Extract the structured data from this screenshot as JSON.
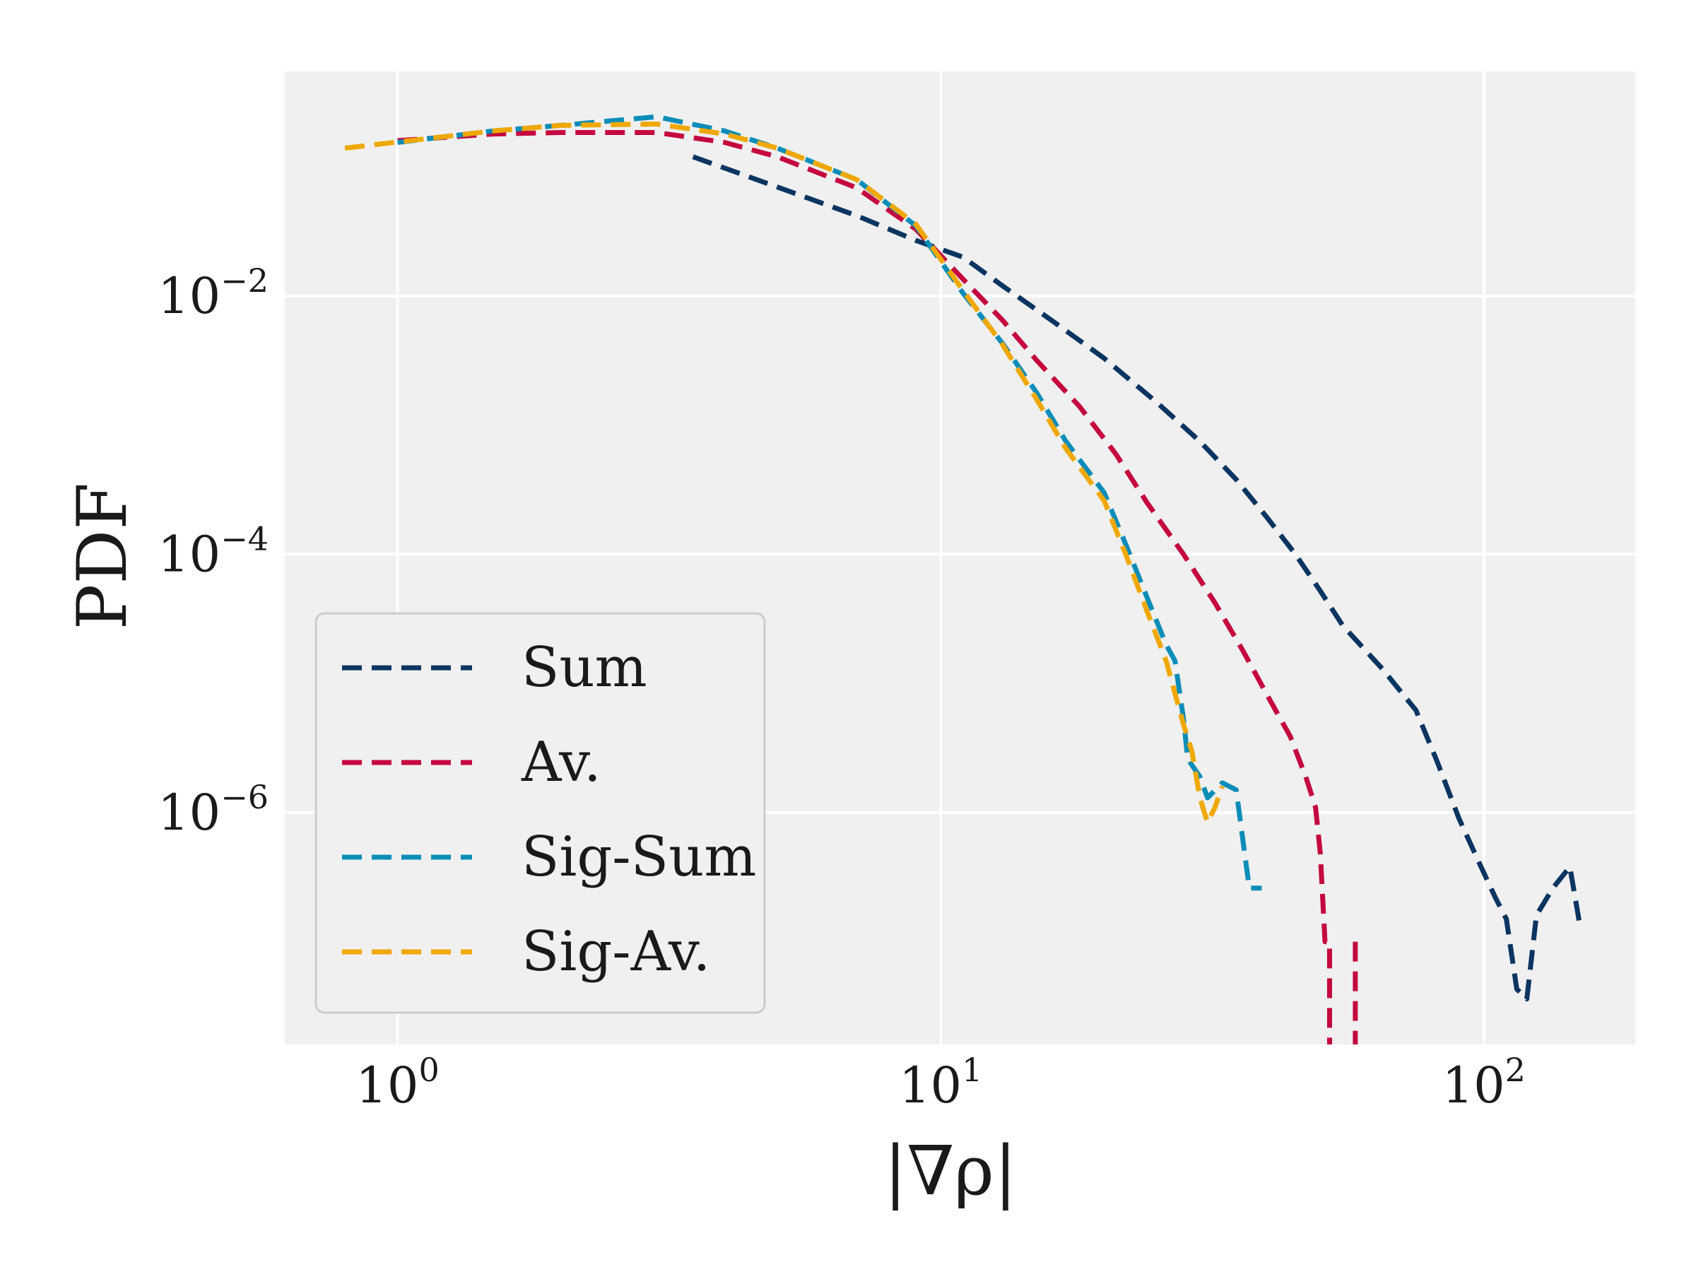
{
  "chart_data": {
    "type": "line",
    "xlabel": "|∇ρ|",
    "ylabel": "PDF",
    "x_scale": "log",
    "y_scale": "log",
    "xlim": [
      0.62,
      190
    ],
    "ylim": [
      1.6e-08,
      0.55
    ],
    "grid": true,
    "legend_position": "lower-left",
    "x_ticks": [
      {
        "value": 1,
        "base": "10",
        "exp": "0"
      },
      {
        "value": 10,
        "base": "10",
        "exp": "1"
      },
      {
        "value": 100,
        "base": "10",
        "exp": "2"
      }
    ],
    "y_ticks": [
      {
        "value": 0.01,
        "base": "10",
        "exp": "−2"
      },
      {
        "value": 0.0001,
        "base": "10",
        "exp": "−4"
      },
      {
        "value": 1e-06,
        "base": "10",
        "exp": "−6"
      }
    ],
    "series": [
      {
        "name": "Sum",
        "color": "#0b3561",
        "points": [
          [
            3.5,
            0.12
          ],
          [
            5,
            0.07
          ],
          [
            7,
            0.042
          ],
          [
            9,
            0.027
          ],
          [
            11,
            0.02
          ],
          [
            13,
            0.012
          ],
          [
            16,
            0.0065
          ],
          [
            20,
            0.0033
          ],
          [
            25,
            0.0015
          ],
          [
            30,
            0.00075
          ],
          [
            35,
            0.00038
          ],
          [
            40,
            0.00019
          ],
          [
            45,
            0.0001
          ],
          [
            50,
            5.2e-05
          ],
          [
            55,
            2.8e-05
          ],
          [
            65,
            1.3e-05
          ],
          [
            75,
            6.2e-06
          ],
          [
            82,
            2.5e-06
          ],
          [
            90,
            9e-07
          ],
          [
            97,
            4.5e-07
          ],
          [
            105,
            2.2e-07
          ],
          [
            110,
            1.5e-07
          ],
          [
            115,
            4.3e-08
          ],
          [
            120,
            3.6e-08
          ],
          [
            125,
            1.6e-07
          ],
          [
            134,
            2.6e-07
          ],
          [
            144,
            3.8e-07
          ],
          [
            150,
            1.4e-07
          ]
        ]
      },
      {
        "name": "Av.",
        "color": "#c5073f",
        "points": [
          [
            1,
            0.16
          ],
          [
            1.5,
            0.18
          ],
          [
            2,
            0.185
          ],
          [
            3,
            0.185
          ],
          [
            4,
            0.155
          ],
          [
            5,
            0.12
          ],
          [
            7,
            0.069
          ],
          [
            9,
            0.033
          ],
          [
            11,
            0.0135
          ],
          [
            13,
            0.0065
          ],
          [
            15,
            0.0032
          ],
          [
            18,
            0.0014
          ],
          [
            21,
            0.0006
          ],
          [
            24,
            0.00025
          ],
          [
            28,
            0.0001
          ],
          [
            32,
            4.2e-05
          ],
          [
            36,
            1.8e-05
          ],
          [
            40,
            8e-06
          ],
          [
            44,
            3.9e-06
          ],
          [
            47,
            1.9e-06
          ],
          [
            49,
            1.1e-06
          ],
          [
            50,
            4.8e-07
          ],
          [
            51,
            1e-07
          ],
          [
            52,
            1e-07
          ],
          [
            52,
            1.6e-08
          ]
        ]
      },
      {
        "name": "Av.",
        "color": "#c5073f",
        "points": [
          [
            58,
            1e-07
          ],
          [
            58,
            1.6e-08
          ]
        ]
      },
      {
        "name": "Sig-Sum",
        "color": "#0a8db8",
        "points": [
          [
            1,
            0.155
          ],
          [
            1.5,
            0.19
          ],
          [
            2,
            0.21
          ],
          [
            3,
            0.245
          ],
          [
            4,
            0.19
          ],
          [
            5,
            0.14
          ],
          [
            7,
            0.08
          ],
          [
            9,
            0.035
          ],
          [
            11,
            0.0105
          ],
          [
            13,
            0.0043
          ],
          [
            15,
            0.0018
          ],
          [
            17,
            0.00075
          ],
          [
            20,
            0.0003
          ],
          [
            22,
            0.000115
          ],
          [
            24,
            4.6e-05
          ],
          [
            26,
            2e-05
          ],
          [
            27,
            1.5e-05
          ],
          [
            28,
            5.3e-06
          ],
          [
            28.5,
            2.6e-06
          ],
          [
            30,
            1.9e-06
          ],
          [
            31,
            1.3e-06
          ],
          [
            33,
            1.7e-06
          ],
          [
            35,
            1.5e-06
          ],
          [
            37,
            2.6e-07
          ],
          [
            39,
            2.6e-07
          ]
        ]
      },
      {
        "name": "Sig-Av.",
        "color": "#f0a800",
        "points": [
          [
            0.8,
            0.14
          ],
          [
            1.5,
            0.19
          ],
          [
            2,
            0.21
          ],
          [
            3,
            0.215
          ],
          [
            4,
            0.18
          ],
          [
            5,
            0.14
          ],
          [
            7,
            0.08
          ],
          [
            9,
            0.036
          ],
          [
            11,
            0.011
          ],
          [
            13,
            0.0042
          ],
          [
            15,
            0.0016
          ],
          [
            17,
            0.00066
          ],
          [
            20,
            0.00026
          ],
          [
            22,
            9.6e-05
          ],
          [
            24,
            3.6e-05
          ],
          [
            26,
            1.5e-05
          ],
          [
            28,
            4.8e-06
          ],
          [
            29,
            3e-06
          ],
          [
            30,
            1.3e-06
          ],
          [
            31,
            8.4e-07
          ],
          [
            32,
            1.1e-06
          ],
          [
            33,
            1.6e-06
          ]
        ]
      }
    ],
    "legend": [
      {
        "label": "Sum",
        "color": "#0b3561"
      },
      {
        "label": "Av.",
        "color": "#c5073f"
      },
      {
        "label": "Sig-Sum",
        "color": "#0a8db8"
      },
      {
        "label": "Sig-Av.",
        "color": "#f0a800"
      }
    ]
  }
}
